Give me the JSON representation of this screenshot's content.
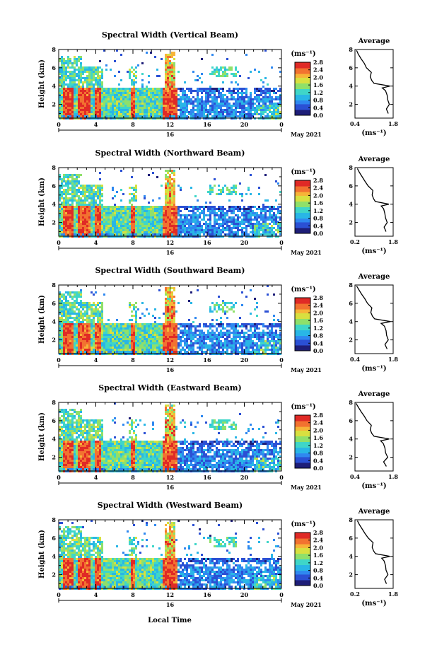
{
  "figure": {
    "xlabel": "Local Time",
    "date_label": "May 2021",
    "day_label": "16",
    "colorbar_unit": "(ms⁻¹)",
    "avg_title": "Average",
    "avg_unit": "(ms⁻¹)",
    "ylabel": "Height (km)",
    "colormap": [
      "#1e1e78",
      "#2b50d4",
      "#2f88f0",
      "#29b6e6",
      "#3fd6c8",
      "#8fe06a",
      "#d8e040",
      "#f6b438",
      "#f27230",
      "#e02a26"
    ]
  },
  "chart_data": [
    {
      "type": "heatmap",
      "title": "Spectral Width (Vertical Beam)",
      "x_ticks": [
        "0",
        "4",
        "8",
        "12",
        "16",
        "20",
        "0"
      ],
      "x_range_hours": [
        0,
        24
      ],
      "y_ticks": [
        "2",
        "4",
        "6",
        "8"
      ],
      "ylim_km": [
        0.5,
        8
      ],
      "colorbar_ticks": [
        "0.0",
        "0.4",
        "0.8",
        "1.2",
        "1.6",
        "2.0",
        "2.4",
        "2.8"
      ],
      "avg_x_ticks": [
        "0.4",
        "1.8"
      ],
      "avg_xlim": [
        0.4,
        1.8
      ],
      "avg_profile": {
        "height_km": [
          1.0,
          1.5,
          2.0,
          2.5,
          3.0,
          3.5,
          3.8,
          4.0,
          4.3,
          4.6,
          5.0,
          5.5,
          6.0,
          6.5,
          7.0,
          7.5,
          7.9
        ],
        "width": [
          1.62,
          1.55,
          1.66,
          1.6,
          1.58,
          1.52,
          1.4,
          1.68,
          1.1,
          1.02,
          0.96,
          1.0,
          0.82,
          0.74,
          0.62,
          0.52,
          0.46
        ]
      }
    },
    {
      "type": "heatmap",
      "title": "Spectral Width (Northward Beam)",
      "x_ticks": [
        "0",
        "4",
        "8",
        "12",
        "16",
        "20",
        "0"
      ],
      "x_range_hours": [
        0,
        24
      ],
      "y_ticks": [
        "2",
        "4",
        "6",
        "8"
      ],
      "ylim_km": [
        0.5,
        8
      ],
      "colorbar_ticks": [
        "0.0",
        "0.4",
        "0.8",
        "1.2",
        "1.6",
        "2.0",
        "2.4",
        "2.8"
      ],
      "avg_x_ticks": [
        "0.2",
        "1.8"
      ],
      "avg_xlim": [
        0.2,
        1.8
      ],
      "avg_profile": {
        "height_km": [
          1.0,
          1.5,
          2.0,
          2.5,
          3.0,
          3.5,
          3.8,
          4.0,
          4.3,
          4.6,
          5.0,
          5.5,
          6.0,
          6.5,
          7.0,
          7.5,
          7.9
        ],
        "width": [
          1.5,
          1.42,
          1.55,
          1.48,
          1.45,
          1.4,
          1.3,
          1.62,
          1.05,
          0.98,
          0.92,
          0.95,
          0.75,
          0.62,
          0.5,
          0.38,
          0.3
        ]
      }
    },
    {
      "type": "heatmap",
      "title": "Spectral Width (Southward Beam)",
      "x_ticks": [
        "0",
        "4",
        "8",
        "12",
        "16",
        "20",
        "0"
      ],
      "x_range_hours": [
        0,
        24
      ],
      "y_ticks": [
        "2",
        "4",
        "6",
        "8"
      ],
      "ylim_km": [
        0.5,
        8
      ],
      "colorbar_ticks": [
        "0.0",
        "0.4",
        "0.8",
        "1.2",
        "1.6",
        "2.0",
        "2.4",
        "2.8"
      ],
      "avg_x_ticks": [
        "0.4",
        "1.8"
      ],
      "avg_xlim": [
        0.4,
        1.8
      ],
      "avg_profile": {
        "height_km": [
          1.0,
          1.5,
          2.0,
          2.5,
          3.0,
          3.5,
          3.8,
          4.0,
          4.3,
          4.6,
          5.0,
          5.5,
          6.0,
          6.5,
          7.0,
          7.5,
          7.9
        ],
        "width": [
          1.58,
          1.5,
          1.62,
          1.56,
          1.54,
          1.48,
          1.36,
          1.7,
          1.12,
          1.04,
          0.98,
          1.02,
          0.86,
          0.76,
          0.64,
          0.54,
          0.46
        ]
      }
    },
    {
      "type": "heatmap",
      "title": "Spectral Width (Eastward Beam)",
      "x_ticks": [
        "0",
        "4",
        "8",
        "12",
        "16",
        "20",
        "0"
      ],
      "x_range_hours": [
        0,
        24
      ],
      "y_ticks": [
        "2",
        "4",
        "6",
        "8"
      ],
      "ylim_km": [
        0.5,
        8
      ],
      "colorbar_ticks": [
        "0.0",
        "0.4",
        "0.8",
        "1.2",
        "1.6",
        "2.0",
        "2.4",
        "2.8"
      ],
      "avg_x_ticks": [
        "0.4",
        "1.8"
      ],
      "avg_xlim": [
        0.4,
        1.8
      ],
      "avg_profile": {
        "height_km": [
          1.0,
          1.5,
          2.0,
          2.5,
          3.0,
          3.5,
          3.8,
          4.0,
          4.3,
          4.6,
          5.0,
          5.5,
          6.0,
          6.5,
          7.0,
          7.5,
          7.9
        ],
        "width": [
          1.55,
          1.45,
          1.6,
          1.52,
          1.5,
          1.44,
          1.34,
          1.66,
          1.1,
          1.02,
          0.96,
          1.0,
          0.84,
          0.74,
          0.62,
          0.52,
          0.44
        ]
      }
    },
    {
      "type": "heatmap",
      "title": "Spectral Width (Westward Beam)",
      "x_ticks": [
        "0",
        "4",
        "8",
        "12",
        "16",
        "20",
        "0"
      ],
      "x_range_hours": [
        0,
        24
      ],
      "y_ticks": [
        "2",
        "4",
        "6",
        "8"
      ],
      "ylim_km": [
        0.5,
        8
      ],
      "colorbar_ticks": [
        "0.0",
        "0.4",
        "0.8",
        "1.2",
        "1.6",
        "2.0",
        "2.4",
        "2.8"
      ],
      "avg_x_ticks": [
        "0.2",
        "1.8"
      ],
      "avg_xlim": [
        0.2,
        1.8
      ],
      "avg_profile": {
        "height_km": [
          1.0,
          1.5,
          2.0,
          2.5,
          3.0,
          3.5,
          3.8,
          4.0,
          4.3,
          4.6,
          5.0,
          5.5,
          6.0,
          6.5,
          7.0,
          7.5,
          7.9
        ],
        "width": [
          1.52,
          1.44,
          1.58,
          1.5,
          1.48,
          1.42,
          1.32,
          1.66,
          1.06,
          0.98,
          0.92,
          0.96,
          0.76,
          0.62,
          0.5,
          0.38,
          0.3
        ]
      }
    }
  ]
}
